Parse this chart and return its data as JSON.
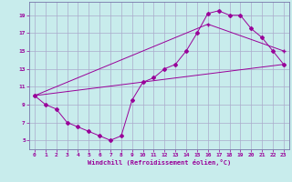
{
  "xlabel": "Windchill (Refroidissement éolien,°C)",
  "bg_color": "#c8ecec",
  "line_color": "#990099",
  "grid_color": "#aaaacc",
  "spine_color": "#7777aa",
  "xlim": [
    -0.5,
    23.5
  ],
  "ylim": [
    4.0,
    20.5
  ],
  "xticks": [
    0,
    1,
    2,
    3,
    4,
    5,
    6,
    7,
    8,
    9,
    10,
    11,
    12,
    13,
    14,
    15,
    16,
    17,
    18,
    19,
    20,
    21,
    22,
    23
  ],
  "yticks": [
    5,
    7,
    9,
    11,
    13,
    15,
    17,
    19
  ],
  "series1_x": [
    0,
    1,
    2,
    3,
    4,
    5,
    6,
    7,
    8,
    9,
    10,
    11,
    12,
    13,
    14,
    15,
    16,
    17,
    18,
    19,
    20,
    21,
    22,
    23
  ],
  "series1_y": [
    10.0,
    9.0,
    8.5,
    7.0,
    6.5,
    6.0,
    5.5,
    5.0,
    5.5,
    9.5,
    11.5,
    12.0,
    13.0,
    13.5,
    15.0,
    17.0,
    19.2,
    19.5,
    19.0,
    19.0,
    17.5,
    16.5,
    15.0,
    13.5
  ],
  "series2_x": [
    0,
    23
  ],
  "series2_y": [
    10.0,
    13.5
  ],
  "series3_x": [
    0,
    16,
    23
  ],
  "series3_y": [
    10.0,
    18.0,
    15.0
  ]
}
